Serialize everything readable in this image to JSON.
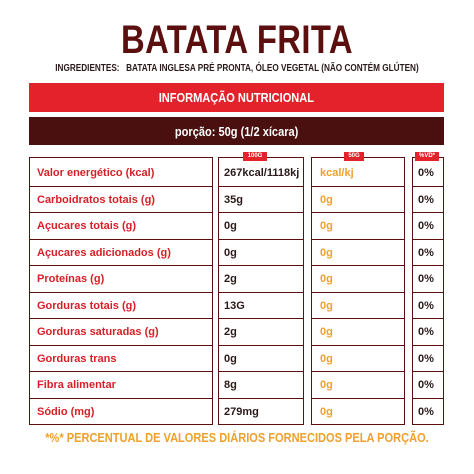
{
  "title": "BATATA FRITA",
  "ingredients": {
    "label": "INGREDIENTES:",
    "text": "BATATA INGLESA PRÉ PRONTA, ÓLEO VEGETAL (NÃO CONTÉM GLÚTEN)"
  },
  "section_header": "INFORMAÇÃO NUTRICIONAL",
  "serving": "porção: 50g (1/2 xícara)",
  "column_tags": {
    "per100": "100G",
    "per50": "50G",
    "vd": "%VD*"
  },
  "colors": {
    "brand_dark": "#5b0f0f",
    "band_red": "#e3222b",
    "band_dark": "#4a1010",
    "label_red": "#d71f26",
    "accent_orange": "#f0a02b"
  },
  "rows": [
    {
      "label": "Valor energético (kcal)",
      "per100": "267kcal/1118kj",
      "per50": "kcal/kj",
      "vd": "0%"
    },
    {
      "label": "Carboidratos totais (g)",
      "per100": "35g",
      "per50": "0g",
      "vd": "0%"
    },
    {
      "label": "Açucares totais (g)",
      "per100": "0g",
      "per50": "0g",
      "vd": "0%"
    },
    {
      "label": "Açucares adicionados (g)",
      "per100": "0g",
      "per50": "0g",
      "vd": "0%"
    },
    {
      "label": "Proteínas (g)",
      "per100": "2g",
      "per50": "0g",
      "vd": "0%"
    },
    {
      "label": "Gorduras totais (g)",
      "per100": "13G",
      "per50": "0g",
      "vd": "0%"
    },
    {
      "label": "Gorduras saturadas (g)",
      "per100": "2g",
      "per50": "0g",
      "vd": "0%"
    },
    {
      "label": "Gorduras trans",
      "per100": "0g",
      "per50": "0g",
      "vd": "0%"
    },
    {
      "label": "Fibra alimentar",
      "per100": "8g",
      "per50": "0g",
      "vd": "0%"
    },
    {
      "label": "Sódio (mg)",
      "per100": "279mg",
      "per50": "0g",
      "vd": "0%"
    }
  ],
  "footnote": "*%* PERCENTUAL DE VALORES DIÁRIOS FORNECIDOS PELA PORÇÃO."
}
